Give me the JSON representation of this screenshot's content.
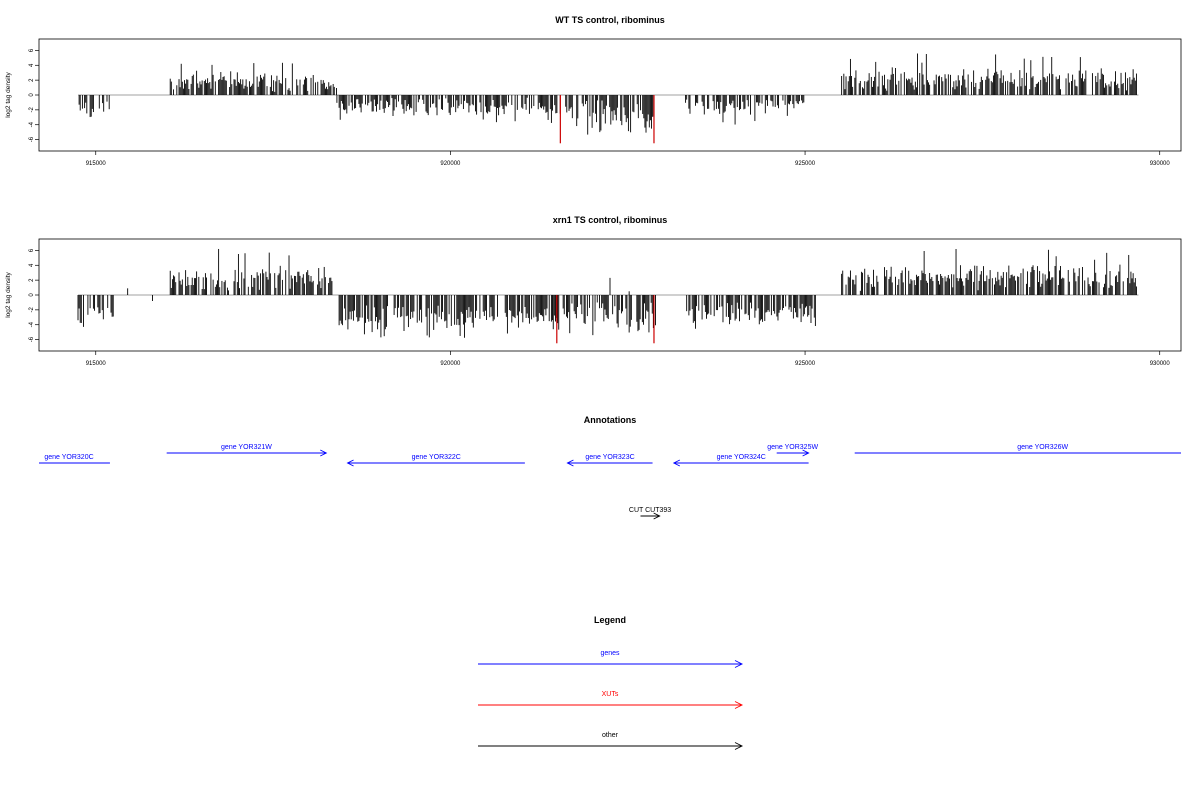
{
  "chart_data": [
    {
      "type": "bar",
      "title": "WT TS control, ribominus",
      "ylabel": "log2 tag density",
      "xlabel": "",
      "xlim": [
        914200,
        930300
      ],
      "ylim": [
        -7,
        7
      ],
      "x_ticks": [
        915000,
        920000,
        925000,
        930000
      ],
      "x_tick_labels": [
        "915000",
        "920000",
        "925000",
        "930000"
      ],
      "y_ticks": [
        -6,
        -4,
        -2,
        0,
        2,
        4,
        6
      ],
      "y_tick_labels": [
        "-6",
        "-4",
        "-2",
        "0",
        "2",
        "4",
        "6"
      ],
      "baseline": {
        "from": 914750,
        "to": 929700,
        "value": 0
      },
      "series_color": "#000000",
      "highlight_color": "#cc0000",
      "regions": [
        {
          "from": 914750,
          "to": 914980,
          "sign": -1,
          "mean": 1.8,
          "spread": 1.4,
          "max": 3.5
        },
        {
          "from": 915050,
          "to": 915200,
          "sign": -1,
          "mean": 1.6,
          "spread": 1.2,
          "max": 3.2
        },
        {
          "from": 916050,
          "to": 918100,
          "sign": 1,
          "mean": 1.8,
          "spread": 1.6,
          "max": 4.5
        },
        {
          "from": 918130,
          "to": 918400,
          "sign": 1,
          "mean": 1.5,
          "spread": 1.2,
          "max": 4.0
        },
        {
          "from": 918400,
          "to": 921300,
          "sign": -1,
          "mean": 1.6,
          "spread": 1.4,
          "max": 4.0
        },
        {
          "from": 921300,
          "to": 922900,
          "sign": -1,
          "mean": 2.6,
          "spread": 2.0,
          "max": 5.5
        },
        {
          "from": 923300,
          "to": 924300,
          "sign": -1,
          "mean": 1.5,
          "spread": 1.4,
          "max": 4.0
        },
        {
          "from": 924300,
          "to": 925000,
          "sign": -1,
          "mean": 1.2,
          "spread": 1.0,
          "max": 3.0
        },
        {
          "from": 925500,
          "to": 929700,
          "sign": 1,
          "mean": 2.1,
          "spread": 1.8,
          "max": 5.8
        }
      ],
      "highlights": [
        {
          "x": 921550,
          "value": -6.5
        },
        {
          "x": 922870,
          "value": -6.5
        }
      ]
    },
    {
      "type": "bar",
      "title": "xrn1 TS control, ribominus",
      "ylabel": "log2 tag density",
      "xlabel": "",
      "xlim": [
        914200,
        930300
      ],
      "ylim": [
        -7,
        7
      ],
      "x_ticks": [
        915000,
        920000,
        925000,
        930000
      ],
      "x_tick_labels": [
        "915000",
        "920000",
        "925000",
        "930000"
      ],
      "y_ticks": [
        -6,
        -4,
        -2,
        0,
        2,
        4,
        6
      ],
      "y_tick_labels": [
        "-6",
        "-4",
        "-2",
        "0",
        "2",
        "4",
        "6"
      ],
      "baseline": {
        "from": 914750,
        "to": 929700,
        "value": 0
      },
      "series_color": "#000000",
      "highlight_color": "#cc0000",
      "regions": [
        {
          "from": 914750,
          "to": 915250,
          "sign": -1,
          "mean": 2.4,
          "spread": 1.6,
          "max": 4.6
        },
        {
          "from": 916050,
          "to": 918350,
          "sign": 1,
          "mean": 2.3,
          "spread": 2.0,
          "max": 6.2
        },
        {
          "from": 918400,
          "to": 921450,
          "sign": -1,
          "mean": 3.0,
          "spread": 1.8,
          "max": 5.8
        },
        {
          "from": 921450,
          "to": 922900,
          "sign": -1,
          "mean": 3.0,
          "spread": 2.2,
          "max": 6.0
        },
        {
          "from": 923300,
          "to": 925150,
          "sign": -1,
          "mean": 2.6,
          "spread": 1.7,
          "max": 5.2
        },
        {
          "from": 925500,
          "to": 929700,
          "sign": 1,
          "mean": 2.4,
          "spread": 1.9,
          "max": 6.3
        }
      ],
      "spikes": [
        {
          "x": 915450,
          "value": 0.9
        },
        {
          "x": 915800,
          "value": -0.8
        },
        {
          "x": 922250,
          "value": 2.3
        },
        {
          "x": 922520,
          "value": 0.5
        }
      ],
      "highlights": [
        {
          "x": 921500,
          "value": -6.5
        },
        {
          "x": 922870,
          "value": -6.5
        }
      ]
    }
  ],
  "annotations": {
    "title": "Annotations",
    "features": [
      {
        "label": "gene YOR320C",
        "from": 913200,
        "to": 915200,
        "strand": "-",
        "row": 2,
        "color": "#0000ff"
      },
      {
        "label": "gene YOR321W",
        "from": 916000,
        "to": 918250,
        "strand": "+",
        "row": 1,
        "color": "#0000ff"
      },
      {
        "label": "gene YOR322C",
        "from": 918550,
        "to": 921050,
        "strand": "-",
        "row": 2,
        "color": "#0000ff"
      },
      {
        "label": "gene YOR323C",
        "from": 921650,
        "to": 922850,
        "strand": "-",
        "row": 2,
        "color": "#0000ff"
      },
      {
        "label": "gene YOR324C",
        "from": 923150,
        "to": 925050,
        "strand": "-",
        "row": 2,
        "color": "#0000ff"
      },
      {
        "label": "gene YOR325W",
        "from": 924600,
        "to": 925050,
        "strand": "+",
        "row": 1,
        "color": "#0000ff"
      },
      {
        "label": "gene YOR326W",
        "from": 925700,
        "to": 931000,
        "strand": "+",
        "row": 1,
        "color": "#0000ff"
      },
      {
        "label": "CUT CUT393",
        "from": 922680,
        "to": 922950,
        "strand": "+",
        "row": 3,
        "color": "#000000"
      }
    ]
  },
  "legend": {
    "title": "Legend",
    "items": [
      {
        "label": "genes",
        "color": "#0000ff"
      },
      {
        "label": "XUTs",
        "color": "#ff0000"
      },
      {
        "label": "other",
        "color": "#000000"
      }
    ]
  }
}
